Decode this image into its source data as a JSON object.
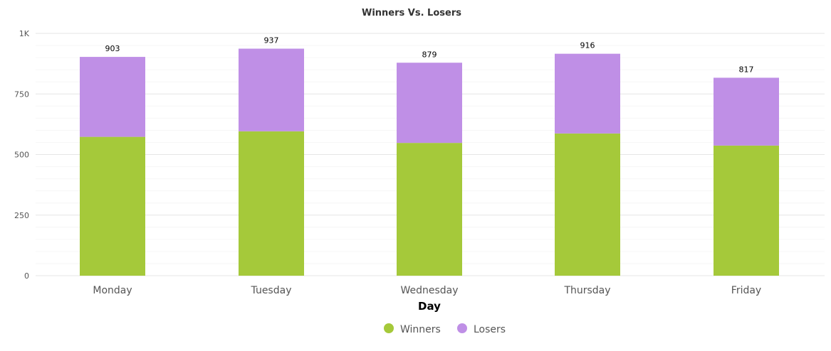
{
  "chart_data": {
    "type": "bar",
    "stacked": true,
    "title": "Winners Vs. Losers",
    "xlabel": "Day",
    "ylabel": "",
    "categories": [
      "Monday",
      "Tuesday",
      "Wednesday",
      "Thursday",
      "Friday"
    ],
    "series": [
      {
        "name": "Winners",
        "color": "#a5c93a",
        "values": [
          573,
          596,
          548,
          587,
          537
        ]
      },
      {
        "name": "Losers",
        "color": "#bf8fe6",
        "values": [
          330,
          341,
          331,
          329,
          280
        ]
      }
    ],
    "totals": [
      903,
      937,
      879,
      916,
      817
    ],
    "ylim": [
      0,
      1000
    ],
    "yticks": [
      0,
      250,
      500,
      750,
      1000
    ],
    "ytick_labels": [
      "0",
      "250",
      "500",
      "750",
      "1K"
    ],
    "grid": true,
    "legend": "bottom-center"
  }
}
